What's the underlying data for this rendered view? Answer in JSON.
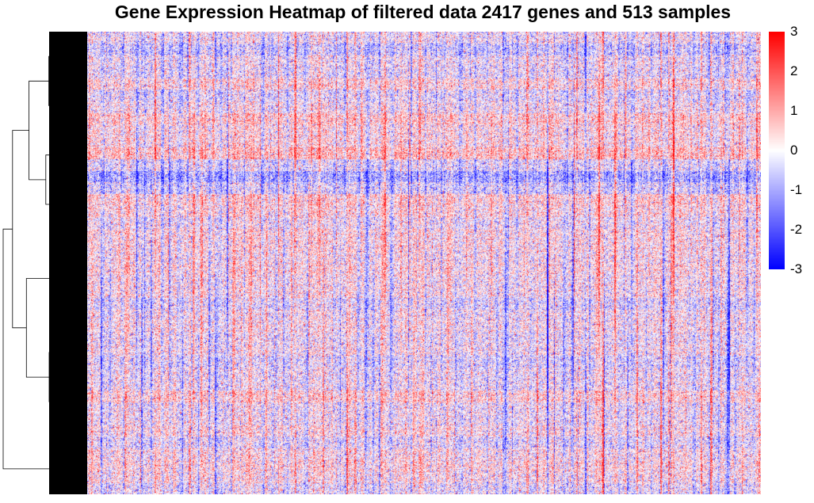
{
  "chart_data": {
    "type": "heatmap",
    "title": "Gene Expression Heatmap of filtered data 2417 genes and 513 samples",
    "n_genes": 2417,
    "n_samples": 513,
    "row_dendrogram": true,
    "color_scale": {
      "min": -3,
      "max": 3,
      "low_color": "#0000ff",
      "mid_color": "#ffffff",
      "high_color": "#ff0000"
    },
    "legend_ticks": [
      "3",
      "2",
      "1",
      "0",
      "-1",
      "-2",
      "-3"
    ],
    "legend_tick_values": [
      3,
      2,
      1,
      0,
      -1,
      -2,
      -3
    ],
    "legend_placement": "right"
  }
}
